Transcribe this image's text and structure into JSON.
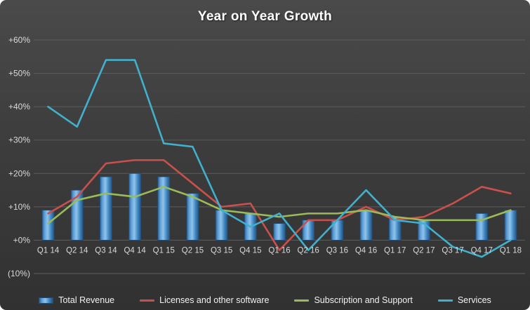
{
  "chart_data": {
    "type": "combo",
    "title": "Year on Year Growth",
    "xlabel": "",
    "ylabel": "",
    "ylim": [
      -10,
      60
    ],
    "grid": "horizontal",
    "legend_position": "bottom",
    "yticks": [
      {
        "value": -10,
        "label": "(10%)"
      },
      {
        "value": 0,
        "label": "+0%"
      },
      {
        "value": 10,
        "label": "+10%"
      },
      {
        "value": 20,
        "label": "+20%"
      },
      {
        "value": 30,
        "label": "+30%"
      },
      {
        "value": 40,
        "label": "+40%"
      },
      {
        "value": 50,
        "label": "+50%"
      },
      {
        "value": 60,
        "label": "+60%"
      }
    ],
    "categories": [
      "Q1 14",
      "Q2 14",
      "Q3 14",
      "Q4 14",
      "Q1 15",
      "Q2 15",
      "Q3 15",
      "Q4 15",
      "Q1 16",
      "Q2 16",
      "Q3 16",
      "Q4 16",
      "Q1 17",
      "Q2 17",
      "Q3 17",
      "Q4 17",
      "Q1 18"
    ],
    "series": [
      {
        "name": "Total Revenue",
        "type": "bar",
        "color": "#4F81BD",
        "values": [
          9,
          15,
          19,
          20,
          19,
          14,
          9,
          8,
          5,
          6,
          6,
          9,
          7,
          6,
          0,
          8,
          9
        ]
      },
      {
        "name": "Licenses and other software",
        "type": "line",
        "color": "#C9504C",
        "values": [
          8,
          13,
          23,
          24,
          24,
          17,
          10,
          11,
          -3,
          6,
          6,
          10,
          6,
          7,
          11,
          16,
          14
        ]
      },
      {
        "name": "Subscription and Support",
        "type": "line",
        "color": "#9BBB59",
        "values": [
          5,
          12,
          14,
          13,
          16,
          13,
          9,
          8,
          7,
          8,
          8,
          9,
          7,
          6,
          6,
          6,
          9
        ]
      },
      {
        "name": "Services",
        "type": "line",
        "color": "#41B0CC",
        "values": [
          40,
          34,
          54,
          54,
          29,
          28,
          9,
          4,
          8,
          -3,
          6,
          15,
          6,
          5,
          -2,
          -5,
          0
        ]
      }
    ]
  }
}
